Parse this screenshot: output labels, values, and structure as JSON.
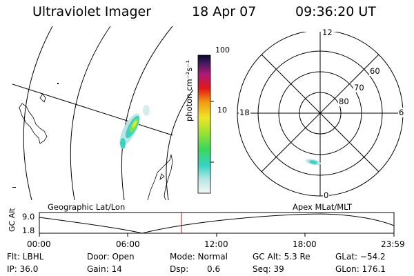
{
  "header": {
    "title": "Ultraviolet Imager",
    "date": "18 Apr 07",
    "time": "09:36:20 UT"
  },
  "colorbar": {
    "unit_label": "photon cm⁻²s⁻¹",
    "ticks": [
      "100",
      "10"
    ]
  },
  "polar_plot": {
    "mlt_labels": {
      "top": "12",
      "left": "18",
      "right": "6",
      "bottom": "0"
    },
    "lat_labels": [
      "60",
      "70",
      "80"
    ]
  },
  "panel_labels": {
    "left": "Geographic Lat/Lon",
    "right": "Apex MLat/MLT"
  },
  "altitude_plot": {
    "ylabel": "GC Alt",
    "yticks": [
      "9.0",
      "1.8"
    ],
    "xticks": [
      "00:00",
      "06:00",
      "12:00",
      "18:00",
      "23:59"
    ],
    "marker_time": "09:36:20"
  },
  "status": {
    "flt": "Flt: LBHL",
    "ip": "IP: 36.0",
    "door": "Door: Open",
    "gain": "Gain: 14",
    "mode": "Mode: Normal",
    "dsp_label": "Dsp:",
    "dsp_value": "0.6",
    "gc_alt": "GC Alt: 5.3 Re",
    "seq": "Seq: 39",
    "glat": "GLat: −54.2",
    "glon": "GLon: 176.1"
  },
  "colors": {
    "marker": "#d00000",
    "grid": "#000000"
  }
}
